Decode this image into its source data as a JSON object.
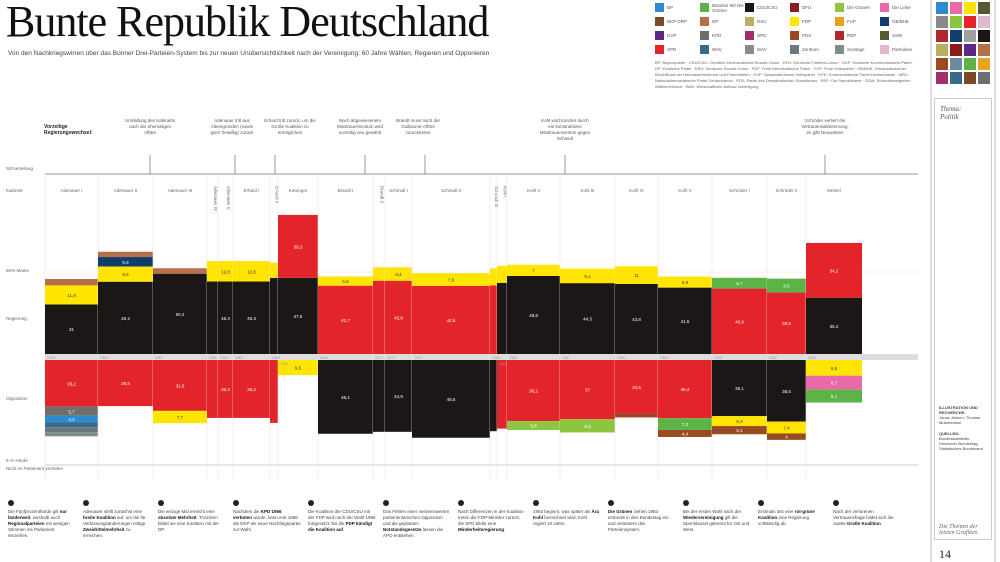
{
  "header": {
    "title": "Bunte Republik Deutschland",
    "subtitle": "Von den Nachkriegswirren über das Bonner Drei-Parteien-System bis zur neuen Unübersichtlichkeit nach der Vereinigung: 60 Jahre Wählen, Regieren und Opponieren"
  },
  "legend": [
    {
      "label": "BP",
      "color": "#2e8bd0"
    },
    {
      "label": "Bündnis 90/ Die Grünen",
      "color": "#5cb446"
    },
    {
      "label": "CDU/CSU",
      "color": "#1b1717"
    },
    {
      "label": "DFU",
      "color": "#8b1a1a"
    },
    {
      "label": "Die Grünen",
      "color": "#8cc63f"
    },
    {
      "label": "Die Linke",
      "color": "#e86ba8"
    },
    {
      "label": "DKP DRP",
      "color": "#7a4a26"
    },
    {
      "label": "DP",
      "color": "#b5704a"
    },
    {
      "label": "DSU",
      "color": "#b8b060"
    },
    {
      "label": "FDP",
      "color": "#ffe500"
    },
    {
      "label": "FVP",
      "color": "#e8a020"
    },
    {
      "label": "GB/BHE",
      "color": "#123e6e"
    },
    {
      "label": "GVP",
      "color": "#5a2a82"
    },
    {
      "label": "KPD",
      "color": "#6e6e6e"
    },
    {
      "label": "NPD",
      "color": "#a0306a"
    },
    {
      "label": "PDS",
      "color": "#9a4a20"
    },
    {
      "label": "REP",
      "color": "#b0282e"
    },
    {
      "label": "SSW",
      "color": "#5a5a30"
    },
    {
      "label": "SPD",
      "color": "#e3242b"
    },
    {
      "label": "WAV",
      "color": "#3a6a8a"
    },
    {
      "label": "WAV",
      "color": "#8a8a8a"
    },
    {
      "label": "Zentrum",
      "color": "#6a7a80"
    },
    {
      "label": "Sonstige",
      "color": "#7a9080"
    },
    {
      "label": "Parteilose",
      "color": "#e0b8d0"
    }
  ],
  "legend_note": "BP: Bayernpartei · CDU/CSU: Christlich Demokratische/Soziale Union · DFU: Deutsche Friedens-Union · DKP: Deutsche Kommunistische Partei · DP: Deutsche Partei · DSU: Deutsche Soziale Union · FDP: Freie Demokratische Partei · FVP: Freie Volkspartei · GB/BHE: Gesamtdeutscher Block/Bund der Heimatvertriebenen und Entrechteten · GVP: Gesamtdeutsche Volkspartei · KPD: Kommunistische Partei Deutschlands · NPD: Nationaldemokratische Partei Deutschlands · PDS: Partei des Demokratischen Sozialismus · REP: Die Republikaner · SSW: Südschleswigscher Wählerverband · WAV: Wirtschaftliche Aufbau-Vereinigung",
  "sidebar": {
    "swatches": [
      "#2e8bd0",
      "#e86ba8",
      "#ffe500",
      "#5a5a30",
      "#8a8a8a",
      "#8cc63f",
      "#e3242b",
      "#e0b8d0",
      "#b0282e",
      "#123e6e",
      "#a0a0a0",
      "#1b1717",
      "#b8b060",
      "#8b1a1a",
      "#5a2a82",
      "#b5704a",
      "#9a4a20",
      "#6e8aa0",
      "#5cb446",
      "#e8a020",
      "#a0306a",
      "#3a6a8a",
      "#7a4a26",
      "#6e6e6e"
    ],
    "theme_label": "Thema:",
    "theme_value": "Politik",
    "credits_heading": "ILLUSTRATION UND RECHERCHE:",
    "credits_names": "Jonas Jensen, Thomas Mustermann",
    "source_heading": "QUELLEN:",
    "source_text": "Bundeswahlleiter, Deutscher Bundestag, Statistisches Bundesamt",
    "footer_title": "Die Themen der letzten Grafiken",
    "page_number": "14"
  },
  "chart_data": {
    "type": "stacked-bar",
    "row_labels": {
      "seats": "Sitzverteilung",
      "cabinet": "Kabinett",
      "majority": "50%-Marke",
      "government": "Regierung",
      "opposition": "Opposition",
      "threshold": "5-%-Hürde",
      "outside": "Nicht im Parlament vertreten"
    },
    "corner_label": "Vorzeitige Regierungswechsel:",
    "annotations": [
      "Umbildung des Kabinetts nach der ehemaligen Affäre",
      "Adenauer tritt aus Altersgründen (sowie ganz freiwillig) zurück",
      "Erhard tritt zurück, um die Große Koalition zu ermöglichen",
      "Nach abgewiesenem Misstrauensvotum wird vorzeitig neu gewählt",
      "Brandt muss nach der Guillaume-Affäre zurücktreten",
      "Kohl wird Kanzler durch ein konstruktives Misstrauensvotum gegen Schmidt",
      "Schröder verliert die Vertrauensabstimmung, es gibt Neuwahlen"
    ],
    "cabinets": [
      {
        "name": "Adenauer I",
        "year": "1949",
        "gov": [
          [
            "CDU/CSU",
            31.0
          ],
          [
            "FDP",
            11.9
          ],
          [
            "DP",
            4.0
          ]
        ],
        "opp": [
          [
            "SPD",
            29.2
          ],
          [
            "KPD",
            5.7
          ],
          [
            "BP",
            4.2
          ],
          [
            "WAV",
            2.9
          ],
          [
            "Zentrum",
            3.1
          ],
          [
            "Sonstige",
            2.6
          ]
        ]
      },
      {
        "name": "Adenauer II",
        "year": "1953",
        "gov": [
          [
            "CDU/CSU",
            45.2
          ],
          [
            "FDP",
            9.5
          ],
          [
            "GB/BHE",
            5.9
          ],
          [
            "DP",
            3.3
          ]
        ],
        "opp": [
          [
            "SPD",
            28.8
          ]
        ]
      },
      {
        "name": "Adenauer III",
        "year": "1957",
        "gov": [
          [
            "CDU/CSU",
            50.2
          ],
          [
            "DP",
            3.4
          ]
        ],
        "opp": [
          [
            "SPD",
            31.8
          ],
          [
            "FDP",
            7.7
          ]
        ]
      },
      {
        "name": "Adenauer IV",
        "year": "1961",
        "gov": [
          [
            "CDU/CSU",
            45.3
          ],
          [
            "FDP",
            12.8
          ]
        ],
        "opp": [
          [
            "SPD",
            36.2
          ]
        ]
      },
      {
        "name": "Adenauer V",
        "year": "1962",
        "gov": [
          [
            "CDU/CSU",
            45.3
          ],
          [
            "FDP",
            12.8
          ]
        ],
        "opp": [
          [
            "SPD",
            36.2
          ]
        ]
      },
      {
        "name": "Erhard I",
        "year": "1963",
        "gov": [
          [
            "CDU/CSU",
            45.3
          ],
          [
            "FDP",
            12.8
          ]
        ],
        "opp": [
          [
            "SPD",
            36.2
          ]
        ]
      },
      {
        "name": "Erhard II",
        "year": "1965",
        "gov": [
          [
            "CDU/CSU",
            47.6
          ],
          [
            "FDP",
            9.5
          ]
        ],
        "opp": [
          [
            "SPD",
            39.3
          ]
        ]
      },
      {
        "name": "Kiesinger",
        "year": "1966",
        "gov": [
          [
            "CDU/CSU",
            47.6
          ],
          [
            "SPD",
            39.3
          ]
        ],
        "opp": [
          [
            "FDP",
            9.5
          ]
        ]
      },
      {
        "name": "Brandt I",
        "year": "1969",
        "gov": [
          [
            "SPD",
            42.7
          ],
          [
            "FDP",
            5.8
          ]
        ],
        "opp": [
          [
            "CDU/CSU",
            46.1
          ]
        ]
      },
      {
        "name": "Brandt II",
        "year": "1972",
        "gov": [
          [
            "SPD",
            45.8
          ],
          [
            "FDP",
            8.4
          ]
        ],
        "opp": [
          [
            "CDU/CSU",
            44.9
          ]
        ]
      },
      {
        "name": "Schmidt I",
        "year": "1974",
        "gov": [
          [
            "SPD",
            45.8
          ],
          [
            "FDP",
            8.4
          ]
        ],
        "opp": [
          [
            "CDU/CSU",
            44.9
          ]
        ]
      },
      {
        "name": "Schmidt II",
        "year": "1976",
        "gov": [
          [
            "SPD",
            42.6
          ],
          [
            "FDP",
            7.9
          ]
        ],
        "opp": [
          [
            "CDU/CSU",
            48.6
          ]
        ]
      },
      {
        "name": "Schmidt III",
        "year": "1980",
        "gov": [
          [
            "SPD",
            42.9
          ],
          [
            "FDP",
            10.6
          ]
        ],
        "opp": [
          [
            "CDU/CSU",
            44.5
          ]
        ]
      },
      {
        "name": "Kohl I",
        "year": "1982",
        "gov": [
          [
            "CDU/CSU",
            44.5
          ],
          [
            "FDP",
            10.6
          ]
        ],
        "opp": [
          [
            "SPD",
            42.9
          ]
        ]
      },
      {
        "name": "Kohl II",
        "year": "1983",
        "gov": [
          [
            "CDU/CSU",
            48.8
          ],
          [
            "FDP",
            7.0
          ]
        ],
        "opp": [
          [
            "SPD",
            38.2
          ],
          [
            "Die Grünen",
            5.6
          ]
        ]
      },
      {
        "name": "Kohl III",
        "year": "1987",
        "gov": [
          [
            "CDU/CSU",
            44.3
          ],
          [
            "FDP",
            9.1
          ]
        ],
        "opp": [
          [
            "SPD",
            37.0
          ],
          [
            "Die Grünen",
            8.3
          ]
        ]
      },
      {
        "name": "Kohl IV",
        "year": "1990",
        "gov": [
          [
            "CDU/CSU",
            43.8
          ],
          [
            "FDP",
            11.0
          ]
        ],
        "opp": [
          [
            "SPD",
            33.5
          ],
          [
            "PDS",
            2.4
          ]
        ]
      },
      {
        "name": "Kohl V",
        "year": "1994",
        "gov": [
          [
            "CDU/CSU",
            41.5
          ],
          [
            "FDP",
            6.9
          ]
        ],
        "opp": [
          [
            "SPD",
            36.4
          ],
          [
            "Bündnis 90/ Die Grünen",
            7.3
          ],
          [
            "PDS",
            4.4
          ]
        ]
      },
      {
        "name": "Schröder I",
        "year": "1998",
        "gov": [
          [
            "SPD",
            40.9
          ],
          [
            "Bündnis 90/ Die Grünen",
            6.7
          ]
        ],
        "opp": [
          [
            "CDU/CSU",
            35.1
          ],
          [
            "FDP",
            6.2
          ],
          [
            "PDS",
            5.1
          ]
        ]
      },
      {
        "name": "Schröder II",
        "year": "2002",
        "gov": [
          [
            "SPD",
            38.5
          ],
          [
            "Bündnis 90/ Die Grünen",
            8.6
          ]
        ],
        "opp": [
          [
            "CDU/CSU",
            38.5
          ],
          [
            "FDP",
            7.4
          ],
          [
            "PDS",
            4.0
          ]
        ]
      },
      {
        "name": "Merkel",
        "year": "2005",
        "gov": [
          [
            "CDU/CSU",
            35.2
          ],
          [
            "SPD",
            34.2
          ]
        ],
        "opp": [
          [
            "FDP",
            9.8
          ],
          [
            "Die Linke",
            8.7
          ],
          [
            "Bündnis 90/ Die Grünen",
            8.1
          ]
        ]
      }
    ]
  },
  "notes": [
    {
      "html": "Die Fünfprozenthürde gilt <b>nur länderweit</b>, weshalb auch <b>Regionalparteien</b> mit wenigen Stimmen ins Parlament einziehen."
    },
    {
      "html": "Adenauer stellt zunächst eine <b>breite Koalition</b> auf, um die für Verfassungsänderungen nötige <b>Zweidrittelmehrheit</b> zu erreichen."
    },
    {
      "html": "Die einzige Mal erreicht eine <b>absolute Mehrheit</b>. Trotzdem bildet sie eine Koalition mit der DP."
    },
    {
      "html": "Nachdem die <b>KPD 1956 verboten</b> wurde, kann erst 1968 die DKP als neue Nachfolgepartei zur Wahl."
    },
    {
      "html": "Die Koalition der CDU/CSU mit der FDP wird nach der Wahl 1965 fortgesetzt, bis die <b>FDP kündigt die Koalition auf</b>."
    },
    {
      "html": "Das Fehlen einer nennenswerten parlamentarischen Opposition und die geplanten <b>Notstandsgesetze</b> lassen die APO entstehen."
    },
    {
      "html": "Nach Differenzen in der Koalition treten die FDP-Minister zurück; die SPD bildet eine <b>Minderheitsregierung</b>."
    },
    {
      "html": "1983 beginnt, was später als <b>Ära Kohl</b> bezeichnet wird; Kohl regiert 16 Jahre."
    },
    {
      "html": "<b>Die Grünen</b> ziehen 1983 erstmals in den Bundestag ein und verändern das Parteiensystem."
    },
    {
      "html": "Bei der ersten Wahl nach der <b>Wiedervereinigung</b> gilt die Sperrklausel getrennt für Ost und West."
    },
    {
      "html": "Erstmals löst eine <b>rot-grüne Koalition</b> eine Regierung vollständig ab."
    },
    {
      "html": "Nach der verlorenen Vertrauensfrage bildet sich die zweite <b>Große Koalition</b>."
    }
  ]
}
